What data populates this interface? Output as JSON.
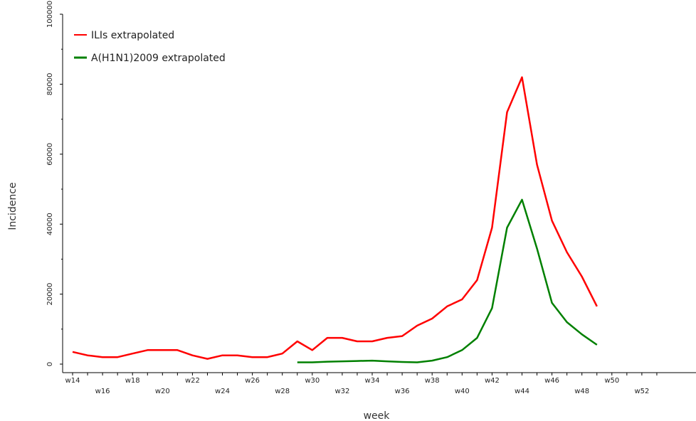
{
  "chart_data": {
    "type": "line",
    "title": "",
    "xlabel": "week",
    "ylabel": "Incidence",
    "x": [
      "w14",
      "w15",
      "w16",
      "w17",
      "w18",
      "w19",
      "w20",
      "w21",
      "w22",
      "w23",
      "w24",
      "w25",
      "w26",
      "w27",
      "w28",
      "w29",
      "w30",
      "w31",
      "w32",
      "w33",
      "w34",
      "w35",
      "w36",
      "w37",
      "w38",
      "w39",
      "w40",
      "w41",
      "w42",
      "w43",
      "w44",
      "w45",
      "w46",
      "w47",
      "w48",
      "w49"
    ],
    "x_tick_labels": [
      "w14",
      "w16",
      "w18",
      "w20",
      "w22",
      "w24",
      "w26",
      "w28",
      "w30",
      "w32",
      "w34",
      "w36",
      "w38",
      "w40",
      "w42",
      "w44",
      "w46",
      "w48",
      "w50",
      "w52"
    ],
    "y_tick_labels": [
      "0",
      "20000",
      "40000",
      "60000",
      "80000",
      "100000"
    ],
    "ylim": [
      0,
      100000
    ],
    "grid": false,
    "legend_position": "top-left",
    "series": [
      {
        "name": "ILIs extrapolated",
        "color": "#ff0000",
        "values": [
          3500,
          2500,
          2000,
          2000,
          3000,
          4000,
          4000,
          4000,
          2500,
          1500,
          2500,
          2500,
          2000,
          2000,
          3000,
          6500,
          4000,
          7500,
          7500,
          6500,
          6500,
          7500,
          8000,
          11000,
          13000,
          16500,
          18500,
          24000,
          39000,
          72000,
          82000,
          57000,
          41000,
          32000,
          25000,
          16500
        ]
      },
      {
        "name": "A(H1N1)2009 extrapolated",
        "color": "#008000",
        "values": [
          null,
          null,
          null,
          null,
          null,
          null,
          null,
          null,
          null,
          null,
          null,
          null,
          null,
          null,
          null,
          500,
          500,
          700,
          800,
          900,
          1000,
          800,
          600,
          500,
          1000,
          2000,
          4000,
          7500,
          16000,
          39000,
          47000,
          33000,
          17500,
          12000,
          8500,
          5500
        ]
      }
    ]
  }
}
